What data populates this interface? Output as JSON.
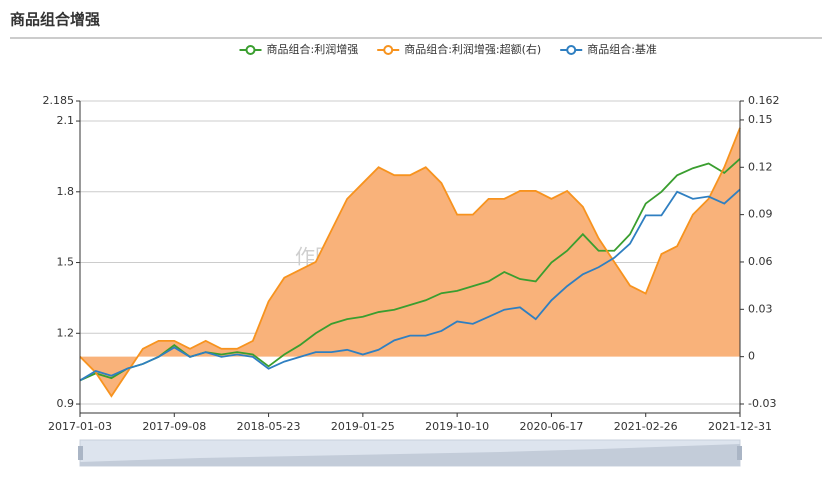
{
  "chart_data": {
    "type": "line",
    "title": "商品组合增强",
    "watermark": "作图：紫金天风期货",
    "categories": [
      "2017-01-03",
      null,
      null,
      null,
      null,
      null,
      "2017-09-08",
      null,
      null,
      null,
      null,
      null,
      "2018-05-23",
      null,
      null,
      null,
      null,
      null,
      "2019-01-25",
      null,
      null,
      null,
      null,
      null,
      "2019-10-10",
      null,
      null,
      null,
      null,
      null,
      "2020-06-17",
      null,
      null,
      null,
      null,
      null,
      "2021-02-26",
      null,
      null,
      null,
      null,
      null,
      "2021-12-31"
    ],
    "ylim": [
      0.862,
      2.185
    ],
    "yticks": [
      0.9,
      1.2,
      1.5,
      1.8,
      2.1,
      2.185
    ],
    "y2lim": [
      -0.0357,
      0.162
    ],
    "y2ticks": [
      -0.03,
      0,
      0.03,
      0.06,
      0.09,
      0.12,
      0.15,
      0.162
    ],
    "grid": true,
    "series": [
      {
        "name": "商品组合:利润增强",
        "color": "#3a9e2f",
        "values": [
          1.0,
          1.03,
          1.01,
          1.05,
          1.07,
          1.1,
          1.15,
          1.1,
          1.12,
          1.11,
          1.12,
          1.11,
          1.06,
          1.11,
          1.15,
          1.2,
          1.24,
          1.26,
          1.27,
          1.29,
          1.3,
          1.32,
          1.34,
          1.37,
          1.38,
          1.4,
          1.42,
          1.46,
          1.43,
          1.42,
          1.5,
          1.55,
          1.62,
          1.55,
          1.55,
          1.62,
          1.75,
          1.8,
          1.87,
          1.9,
          1.92,
          1.88,
          1.94
        ]
      },
      {
        "name": "商品组合:利润增强:超额(右)",
        "color": "#f7931e",
        "fill": "#f9b27a",
        "axis": "y2",
        "values": [
          0,
          -0.01,
          -0.025,
          -0.01,
          0.005,
          0.01,
          0.01,
          0.005,
          0.01,
          0.005,
          0.005,
          0.01,
          0.035,
          0.05,
          0.055,
          0.06,
          0.08,
          0.1,
          0.11,
          0.12,
          0.115,
          0.115,
          0.12,
          0.11,
          0.09,
          0.09,
          0.1,
          0.1,
          0.105,
          0.105,
          0.1,
          0.105,
          0.095,
          0.075,
          0.06,
          0.045,
          0.04,
          0.065,
          0.07,
          0.09,
          0.1,
          0.12,
          0.145
        ]
      },
      {
        "name": "商品组合:基准",
        "color": "#2f7fc1",
        "values": [
          1.0,
          1.04,
          1.02,
          1.05,
          1.07,
          1.1,
          1.14,
          1.1,
          1.12,
          1.1,
          1.11,
          1.1,
          1.05,
          1.08,
          1.1,
          1.12,
          1.12,
          1.13,
          1.11,
          1.13,
          1.17,
          1.19,
          1.19,
          1.21,
          1.25,
          1.24,
          1.27,
          1.3,
          1.31,
          1.26,
          1.34,
          1.4,
          1.45,
          1.48,
          1.52,
          1.58,
          1.7,
          1.7,
          1.8,
          1.77,
          1.78,
          1.75,
          1.81
        ]
      }
    ]
  }
}
